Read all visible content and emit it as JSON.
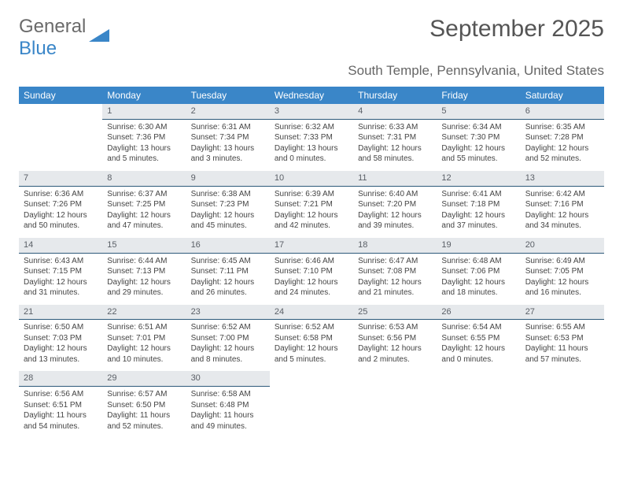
{
  "logo": {
    "text1": "General",
    "text2": "Blue"
  },
  "title": "September 2025",
  "location": "South Temple, Pennsylvania, United States",
  "colors": {
    "header_bg": "#3a86c8",
    "header_text": "#ffffff",
    "daynum_bg": "#e6e9ec",
    "daynum_border": "#2d5a7a",
    "body_text": "#444444",
    "title_text": "#555555",
    "location_text": "#666666"
  },
  "fonts": {
    "title_size": 30,
    "location_size": 17,
    "dayheader_size": 12,
    "daynum_size": 11,
    "body_size": 10
  },
  "day_headers": [
    "Sunday",
    "Monday",
    "Tuesday",
    "Wednesday",
    "Thursday",
    "Friday",
    "Saturday"
  ],
  "weeks": [
    [
      {
        "n": "",
        "sr": "",
        "ss": "",
        "dl": ""
      },
      {
        "n": "1",
        "sr": "Sunrise: 6:30 AM",
        "ss": "Sunset: 7:36 PM",
        "dl": "Daylight: 13 hours and 5 minutes."
      },
      {
        "n": "2",
        "sr": "Sunrise: 6:31 AM",
        "ss": "Sunset: 7:34 PM",
        "dl": "Daylight: 13 hours and 3 minutes."
      },
      {
        "n": "3",
        "sr": "Sunrise: 6:32 AM",
        "ss": "Sunset: 7:33 PM",
        "dl": "Daylight: 13 hours and 0 minutes."
      },
      {
        "n": "4",
        "sr": "Sunrise: 6:33 AM",
        "ss": "Sunset: 7:31 PM",
        "dl": "Daylight: 12 hours and 58 minutes."
      },
      {
        "n": "5",
        "sr": "Sunrise: 6:34 AM",
        "ss": "Sunset: 7:30 PM",
        "dl": "Daylight: 12 hours and 55 minutes."
      },
      {
        "n": "6",
        "sr": "Sunrise: 6:35 AM",
        "ss": "Sunset: 7:28 PM",
        "dl": "Daylight: 12 hours and 52 minutes."
      }
    ],
    [
      {
        "n": "7",
        "sr": "Sunrise: 6:36 AM",
        "ss": "Sunset: 7:26 PM",
        "dl": "Daylight: 12 hours and 50 minutes."
      },
      {
        "n": "8",
        "sr": "Sunrise: 6:37 AM",
        "ss": "Sunset: 7:25 PM",
        "dl": "Daylight: 12 hours and 47 minutes."
      },
      {
        "n": "9",
        "sr": "Sunrise: 6:38 AM",
        "ss": "Sunset: 7:23 PM",
        "dl": "Daylight: 12 hours and 45 minutes."
      },
      {
        "n": "10",
        "sr": "Sunrise: 6:39 AM",
        "ss": "Sunset: 7:21 PM",
        "dl": "Daylight: 12 hours and 42 minutes."
      },
      {
        "n": "11",
        "sr": "Sunrise: 6:40 AM",
        "ss": "Sunset: 7:20 PM",
        "dl": "Daylight: 12 hours and 39 minutes."
      },
      {
        "n": "12",
        "sr": "Sunrise: 6:41 AM",
        "ss": "Sunset: 7:18 PM",
        "dl": "Daylight: 12 hours and 37 minutes."
      },
      {
        "n": "13",
        "sr": "Sunrise: 6:42 AM",
        "ss": "Sunset: 7:16 PM",
        "dl": "Daylight: 12 hours and 34 minutes."
      }
    ],
    [
      {
        "n": "14",
        "sr": "Sunrise: 6:43 AM",
        "ss": "Sunset: 7:15 PM",
        "dl": "Daylight: 12 hours and 31 minutes."
      },
      {
        "n": "15",
        "sr": "Sunrise: 6:44 AM",
        "ss": "Sunset: 7:13 PM",
        "dl": "Daylight: 12 hours and 29 minutes."
      },
      {
        "n": "16",
        "sr": "Sunrise: 6:45 AM",
        "ss": "Sunset: 7:11 PM",
        "dl": "Daylight: 12 hours and 26 minutes."
      },
      {
        "n": "17",
        "sr": "Sunrise: 6:46 AM",
        "ss": "Sunset: 7:10 PM",
        "dl": "Daylight: 12 hours and 24 minutes."
      },
      {
        "n": "18",
        "sr": "Sunrise: 6:47 AM",
        "ss": "Sunset: 7:08 PM",
        "dl": "Daylight: 12 hours and 21 minutes."
      },
      {
        "n": "19",
        "sr": "Sunrise: 6:48 AM",
        "ss": "Sunset: 7:06 PM",
        "dl": "Daylight: 12 hours and 18 minutes."
      },
      {
        "n": "20",
        "sr": "Sunrise: 6:49 AM",
        "ss": "Sunset: 7:05 PM",
        "dl": "Daylight: 12 hours and 16 minutes."
      }
    ],
    [
      {
        "n": "21",
        "sr": "Sunrise: 6:50 AM",
        "ss": "Sunset: 7:03 PM",
        "dl": "Daylight: 12 hours and 13 minutes."
      },
      {
        "n": "22",
        "sr": "Sunrise: 6:51 AM",
        "ss": "Sunset: 7:01 PM",
        "dl": "Daylight: 12 hours and 10 minutes."
      },
      {
        "n": "23",
        "sr": "Sunrise: 6:52 AM",
        "ss": "Sunset: 7:00 PM",
        "dl": "Daylight: 12 hours and 8 minutes."
      },
      {
        "n": "24",
        "sr": "Sunrise: 6:52 AM",
        "ss": "Sunset: 6:58 PM",
        "dl": "Daylight: 12 hours and 5 minutes."
      },
      {
        "n": "25",
        "sr": "Sunrise: 6:53 AM",
        "ss": "Sunset: 6:56 PM",
        "dl": "Daylight: 12 hours and 2 minutes."
      },
      {
        "n": "26",
        "sr": "Sunrise: 6:54 AM",
        "ss": "Sunset: 6:55 PM",
        "dl": "Daylight: 12 hours and 0 minutes."
      },
      {
        "n": "27",
        "sr": "Sunrise: 6:55 AM",
        "ss": "Sunset: 6:53 PM",
        "dl": "Daylight: 11 hours and 57 minutes."
      }
    ],
    [
      {
        "n": "28",
        "sr": "Sunrise: 6:56 AM",
        "ss": "Sunset: 6:51 PM",
        "dl": "Daylight: 11 hours and 54 minutes."
      },
      {
        "n": "29",
        "sr": "Sunrise: 6:57 AM",
        "ss": "Sunset: 6:50 PM",
        "dl": "Daylight: 11 hours and 52 minutes."
      },
      {
        "n": "30",
        "sr": "Sunrise: 6:58 AM",
        "ss": "Sunset: 6:48 PM",
        "dl": "Daylight: 11 hours and 49 minutes."
      },
      {
        "n": "",
        "sr": "",
        "ss": "",
        "dl": ""
      },
      {
        "n": "",
        "sr": "",
        "ss": "",
        "dl": ""
      },
      {
        "n": "",
        "sr": "",
        "ss": "",
        "dl": ""
      },
      {
        "n": "",
        "sr": "",
        "ss": "",
        "dl": ""
      }
    ]
  ]
}
